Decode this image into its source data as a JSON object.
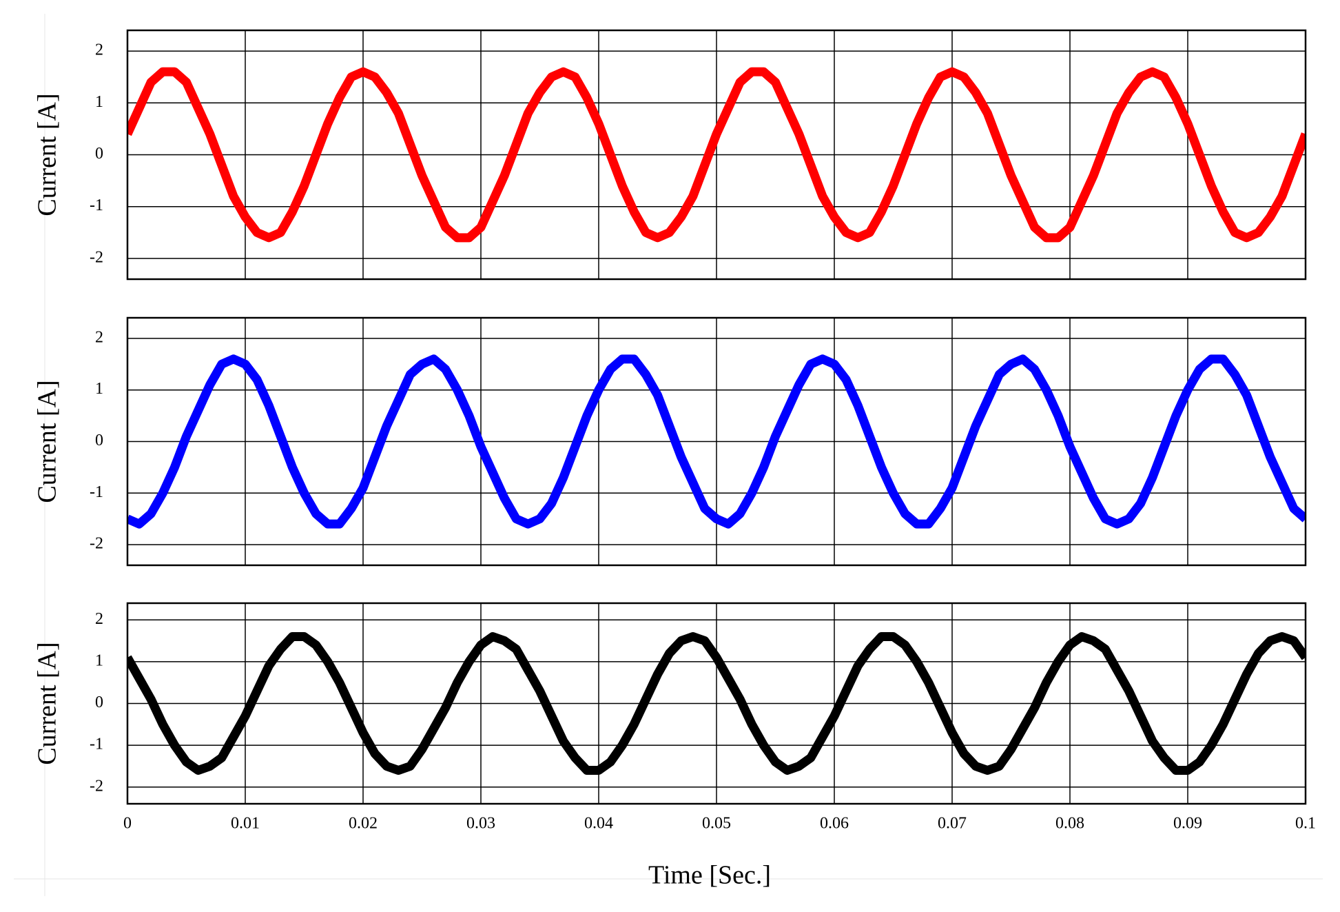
{
  "chart_data": [
    {
      "type": "line",
      "ylabel": "Current [A]",
      "color": "#ff0000",
      "x": [
        0,
        0.001,
        0.002,
        0.003,
        0.004,
        0.005,
        0.006,
        0.007,
        0.008,
        0.009,
        0.01,
        0.011,
        0.012,
        0.013,
        0.014,
        0.015,
        0.016,
        0.017,
        0.018,
        0.019,
        0.02,
        0.021,
        0.022,
        0.023,
        0.024,
        0.025,
        0.026,
        0.027,
        0.028,
        0.029,
        0.03,
        0.031,
        0.032,
        0.033,
        0.034,
        0.035,
        0.036,
        0.037,
        0.038,
        0.039,
        0.04,
        0.041,
        0.042,
        0.043,
        0.044,
        0.045,
        0.046,
        0.047,
        0.048,
        0.049,
        0.05,
        0.051,
        0.052,
        0.053,
        0.054,
        0.055,
        0.056,
        0.057,
        0.058,
        0.059,
        0.06,
        0.061,
        0.062,
        0.063,
        0.064,
        0.065,
        0.066,
        0.067,
        0.068,
        0.069,
        0.07,
        0.071,
        0.072,
        0.073,
        0.074,
        0.075,
        0.076,
        0.077,
        0.078,
        0.079,
        0.08,
        0.081,
        0.082,
        0.083,
        0.084,
        0.085,
        0.086,
        0.087,
        0.088,
        0.089,
        0.09,
        0.091,
        0.092,
        0.093,
        0.094,
        0.095,
        0.096,
        0.097,
        0.098,
        0.099,
        0.1
      ],
      "values": [
        0.4,
        0.9,
        1.4,
        1.6,
        1.6,
        1.4,
        0.9,
        0.4,
        -0.2,
        -0.8,
        -1.2,
        -1.5,
        -1.6,
        -1.5,
        -1.1,
        -0.6,
        0,
        0.6,
        1.1,
        1.5,
        1.6,
        1.5,
        1.2,
        0.8,
        0.2,
        -0.4,
        -0.9,
        -1.4,
        -1.6,
        -1.6,
        -1.4,
        -0.9,
        -0.4,
        0.2,
        0.8,
        1.2,
        1.5,
        1.6,
        1.5,
        1.1,
        0.6,
        0,
        -0.6,
        -1.1,
        -1.5,
        -1.6,
        -1.5,
        -1.2,
        -0.8,
        -0.2,
        0.4,
        0.9,
        1.4,
        1.6,
        1.6,
        1.4,
        0.9,
        0.4,
        -0.2,
        -0.8,
        -1.2,
        -1.5,
        -1.6,
        -1.5,
        -1.1,
        -0.6,
        0,
        0.6,
        1.1,
        1.5,
        1.6,
        1.5,
        1.2,
        0.8,
        0.2,
        -0.4,
        -0.9,
        -1.4,
        -1.6,
        -1.6,
        -1.4,
        -0.9,
        -0.4,
        0.2,
        0.8,
        1.2,
        1.5,
        1.6,
        1.5,
        1.1,
        0.6,
        0,
        -0.6,
        -1.1,
        -1.5,
        -1.6,
        -1.5,
        -1.2,
        -0.8,
        -0.2,
        0.4
      ],
      "xlim": [
        0,
        0.1
      ],
      "xticks": [
        0,
        0.01,
        0.02,
        0.03,
        0.04,
        0.05,
        0.06,
        0.07,
        0.08,
        0.09,
        0.1
      ],
      "ylim": [
        -2.4,
        2.4
      ],
      "yticks": [
        -2,
        -1,
        0,
        1,
        2
      ],
      "grid": true
    },
    {
      "type": "line",
      "ylabel": "Current [A]",
      "color": "#0000ff",
      "x": [
        0,
        0.001,
        0.002,
        0.003,
        0.004,
        0.005,
        0.006,
        0.007,
        0.008,
        0.009,
        0.01,
        0.011,
        0.012,
        0.013,
        0.014,
        0.015,
        0.016,
        0.017,
        0.018,
        0.019,
        0.02,
        0.021,
        0.022,
        0.023,
        0.024,
        0.025,
        0.026,
        0.027,
        0.028,
        0.029,
        0.03,
        0.031,
        0.032,
        0.033,
        0.034,
        0.035,
        0.036,
        0.037,
        0.038,
        0.039,
        0.04,
        0.041,
        0.042,
        0.043,
        0.044,
        0.045,
        0.046,
        0.047,
        0.048,
        0.049,
        0.05,
        0.051,
        0.052,
        0.053,
        0.054,
        0.055,
        0.056,
        0.057,
        0.058,
        0.059,
        0.06,
        0.061,
        0.062,
        0.063,
        0.064,
        0.065,
        0.066,
        0.067,
        0.068,
        0.069,
        0.07,
        0.071,
        0.072,
        0.073,
        0.074,
        0.075,
        0.076,
        0.077,
        0.078,
        0.079,
        0.08,
        0.081,
        0.082,
        0.083,
        0.084,
        0.085,
        0.086,
        0.087,
        0.088,
        0.089,
        0.09,
        0.091,
        0.092,
        0.093,
        0.094,
        0.095,
        0.096,
        0.097,
        0.098,
        0.099,
        0.1
      ],
      "values": [
        -1.5,
        -1.6,
        -1.4,
        -1.0,
        -0.5,
        0.1,
        0.6,
        1.1,
        1.5,
        1.6,
        1.5,
        1.2,
        0.7,
        0.1,
        -0.5,
        -1.0,
        -1.4,
        -1.6,
        -1.6,
        -1.3,
        -0.9,
        -0.3,
        0.3,
        0.8,
        1.3,
        1.5,
        1.6,
        1.4,
        1.0,
        0.5,
        -0.1,
        -0.6,
        -1.1,
        -1.5,
        -1.6,
        -1.5,
        -1.2,
        -0.7,
        -0.1,
        0.5,
        1.0,
        1.4,
        1.6,
        1.6,
        1.3,
        0.9,
        0.3,
        -0.3,
        -0.8,
        -1.3,
        -1.5,
        -1.6,
        -1.4,
        -1.0,
        -0.5,
        0.1,
        0.6,
        1.1,
        1.5,
        1.6,
        1.5,
        1.2,
        0.7,
        0.1,
        -0.5,
        -1.0,
        -1.4,
        -1.6,
        -1.6,
        -1.3,
        -0.9,
        -0.3,
        0.3,
        0.8,
        1.3,
        1.5,
        1.6,
        1.4,
        1.0,
        0.5,
        -0.1,
        -0.6,
        -1.1,
        -1.5,
        -1.6,
        -1.5,
        -1.2,
        -0.7,
        -0.1,
        0.5,
        1.0,
        1.4,
        1.6,
        1.6,
        1.3,
        0.9,
        0.3,
        -0.3,
        -0.8,
        -1.3,
        -1.5
      ],
      "xlim": [
        0,
        0.1
      ],
      "xticks": [
        0,
        0.01,
        0.02,
        0.03,
        0.04,
        0.05,
        0.06,
        0.07,
        0.08,
        0.09,
        0.1
      ],
      "ylim": [
        -2.4,
        2.4
      ],
      "yticks": [
        -2,
        -1,
        0,
        1,
        2
      ],
      "grid": true
    },
    {
      "type": "line",
      "ylabel": "Current [A]",
      "xlabel": "Time [Sec.]",
      "color": "#000000",
      "x": [
        0,
        0.001,
        0.002,
        0.003,
        0.004,
        0.005,
        0.006,
        0.007,
        0.008,
        0.009,
        0.01,
        0.011,
        0.012,
        0.013,
        0.014,
        0.015,
        0.016,
        0.017,
        0.018,
        0.019,
        0.02,
        0.021,
        0.022,
        0.023,
        0.024,
        0.025,
        0.026,
        0.027,
        0.028,
        0.029,
        0.03,
        0.031,
        0.032,
        0.033,
        0.034,
        0.035,
        0.036,
        0.037,
        0.038,
        0.039,
        0.04,
        0.041,
        0.042,
        0.043,
        0.044,
        0.045,
        0.046,
        0.047,
        0.048,
        0.049,
        0.05,
        0.051,
        0.052,
        0.053,
        0.054,
        0.055,
        0.056,
        0.057,
        0.058,
        0.059,
        0.06,
        0.061,
        0.062,
        0.063,
        0.064,
        0.065,
        0.066,
        0.067,
        0.068,
        0.069,
        0.07,
        0.071,
        0.072,
        0.073,
        0.074,
        0.075,
        0.076,
        0.077,
        0.078,
        0.079,
        0.08,
        0.081,
        0.082,
        0.083,
        0.084,
        0.085,
        0.086,
        0.087,
        0.088,
        0.089,
        0.09,
        0.091,
        0.092,
        0.093,
        0.094,
        0.095,
        0.096,
        0.097,
        0.098,
        0.099,
        0.1
      ],
      "values": [
        1.1,
        0.6,
        0.1,
        -0.5,
        -1.0,
        -1.4,
        -1.6,
        -1.5,
        -1.3,
        -0.8,
        -0.3,
        0.3,
        0.9,
        1.3,
        1.6,
        1.6,
        1.4,
        1.0,
        0.5,
        -0.1,
        -0.7,
        -1.2,
        -1.5,
        -1.6,
        -1.5,
        -1.1,
        -0.6,
        -0.1,
        0.5,
        1.0,
        1.4,
        1.6,
        1.5,
        1.3,
        0.8,
        0.3,
        -0.3,
        -0.9,
        -1.3,
        -1.6,
        -1.6,
        -1.4,
        -1.0,
        -0.5,
        0.1,
        0.7,
        1.2,
        1.5,
        1.6,
        1.5,
        1.1,
        0.6,
        0.1,
        -0.5,
        -1.0,
        -1.4,
        -1.6,
        -1.5,
        -1.3,
        -0.8,
        -0.3,
        0.3,
        0.9,
        1.3,
        1.6,
        1.6,
        1.4,
        1.0,
        0.5,
        -0.1,
        -0.7,
        -1.2,
        -1.5,
        -1.6,
        -1.5,
        -1.1,
        -0.6,
        -0.1,
        0.5,
        1.0,
        1.4,
        1.6,
        1.5,
        1.3,
        0.8,
        0.3,
        -0.3,
        -0.9,
        -1.3,
        -1.6,
        -1.6,
        -1.4,
        -1.0,
        -0.5,
        0.1,
        0.7,
        1.2,
        1.5,
        1.6,
        1.5,
        1.1
      ],
      "xlim": [
        0,
        0.1
      ],
      "xticks": [
        0,
        0.01,
        0.02,
        0.03,
        0.04,
        0.05,
        0.06,
        0.07,
        0.08,
        0.09,
        0.1
      ],
      "ylim": [
        -2.4,
        2.4
      ],
      "yticks": [
        -2,
        -1,
        0,
        1,
        2
      ],
      "grid": true
    }
  ]
}
